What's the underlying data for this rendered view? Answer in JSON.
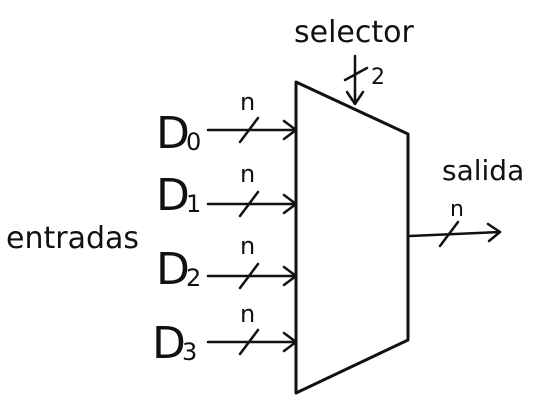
{
  "diagram": {
    "selector_label": "selector",
    "selector_width": "2",
    "inputs_label": "entradas",
    "output_label": "salida",
    "output_width": "n",
    "inputs": [
      {
        "name": "D",
        "sub": "0",
        "width": "n"
      },
      {
        "name": "D",
        "sub": "1",
        "width": "n"
      },
      {
        "name": "D",
        "sub": "2",
        "width": "n"
      },
      {
        "name": "D",
        "sub": "3",
        "width": "n"
      }
    ]
  }
}
